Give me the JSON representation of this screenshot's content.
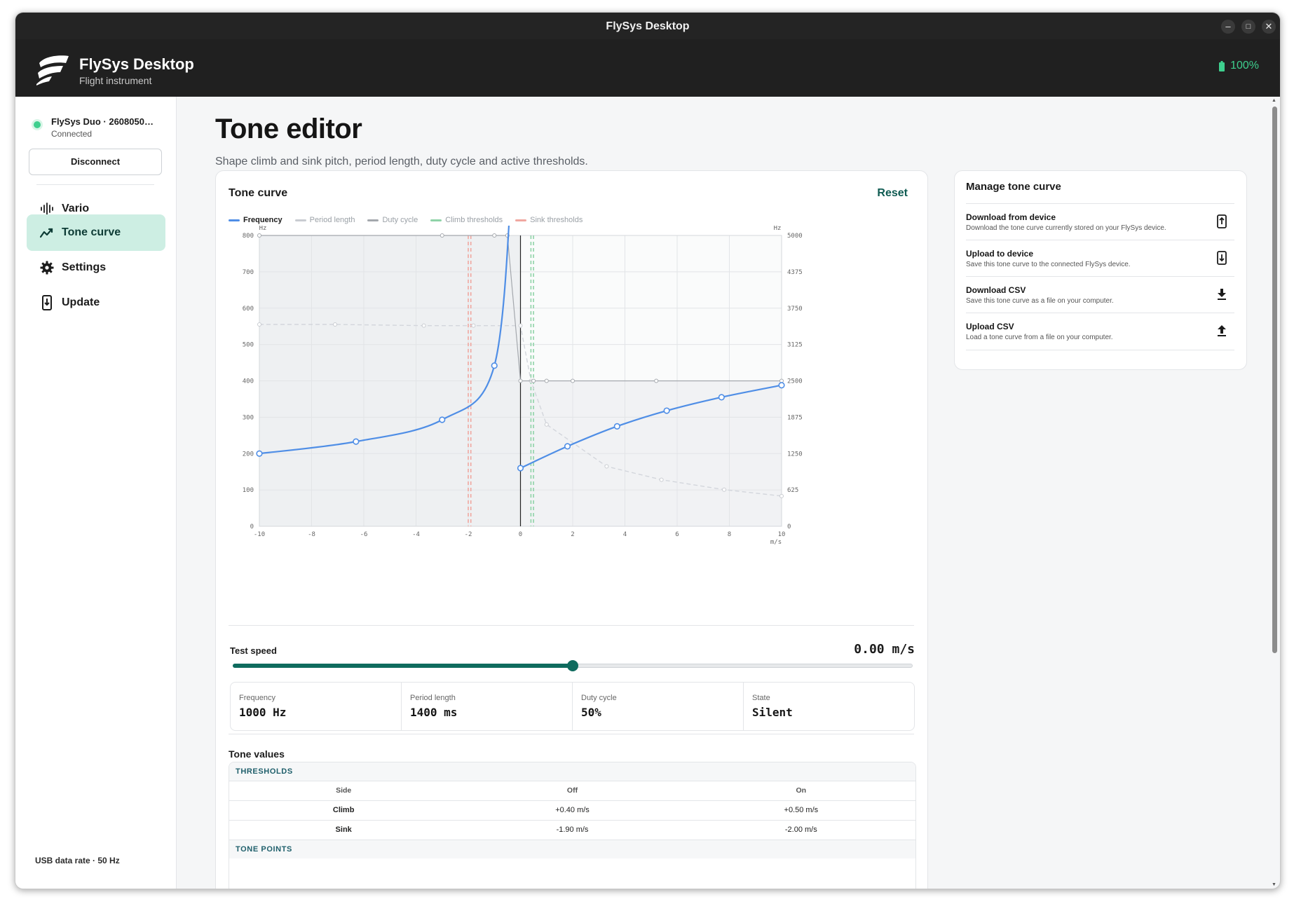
{
  "window": {
    "title": "FlySys Desktop",
    "minimize": "–",
    "maximize": "□",
    "close": "✕"
  },
  "header": {
    "app_name": "FlySys Desktop",
    "subtitle": "Flight instrument",
    "battery": "100%",
    "battery_color": "#3ecf8e"
  },
  "sidebar": {
    "device_name": "FlySys Duo · 2608050…",
    "device_status": "Connected",
    "disconnect_label": "Disconnect",
    "items": [
      {
        "label": "Vario",
        "icon": "waveform-icon"
      },
      {
        "label": "Tone curve",
        "icon": "line-chart-icon",
        "active": true
      },
      {
        "label": "Settings",
        "icon": "gear-icon"
      },
      {
        "label": "Update",
        "icon": "phone-download-icon"
      }
    ],
    "usb_rate": "USB data rate · 50 Hz"
  },
  "page": {
    "title": "Tone editor",
    "subtitle": "Shape climb and sink pitch, period length, duty cycle and active thresholds."
  },
  "tone_card": {
    "title": "Tone curve",
    "reset_label": "Reset",
    "test_speed_label": "Test speed",
    "test_speed_value": "0.00 m/s",
    "slider_fraction": 0.5,
    "stats": [
      {
        "label": "Frequency",
        "value": "1000 Hz"
      },
      {
        "label": "Period length",
        "value": "1400 ms"
      },
      {
        "label": "Duty cycle",
        "value": "50%"
      },
      {
        "label": "State",
        "value": "Silent"
      }
    ],
    "tone_values_title": "Tone values",
    "thresholds_title": "THRESHOLDS",
    "thresholds_head": {
      "side": "Side",
      "off": "Off",
      "on": "On"
    },
    "thresholds": [
      {
        "side": "Climb",
        "off": "+0.40 m/s",
        "on": "+0.50 m/s"
      },
      {
        "side": "Sink",
        "off": "-1.90 m/s",
        "on": "-2.00 m/s"
      }
    ],
    "tone_points_title": "TONE POINTS"
  },
  "chart_data": {
    "type": "line",
    "legend": [
      {
        "name": "Frequency",
        "color": "#4f8ee6"
      },
      {
        "name": "Period length",
        "color": "#c9ccd1"
      },
      {
        "name": "Duty cycle",
        "color": "#a4a8ad"
      },
      {
        "name": "Climb thresholds",
        "color": "#8fd3a8"
      },
      {
        "name": "Sink thresholds",
        "color": "#f0a7a0"
      }
    ],
    "x_unit": "m/s",
    "y_left_unit": "Hz",
    "y_right_unit": "Hz",
    "xlim": [
      -10,
      10
    ],
    "x_ticks": [
      "-10",
      "-8",
      "-6",
      "-4",
      "-2",
      "0",
      "2",
      "4",
      "6",
      "8",
      "10"
    ],
    "y_left_lim": [
      0,
      800
    ],
    "y_left_ticks": [
      "0",
      "100",
      "200",
      "300",
      "400",
      "500",
      "600",
      "700",
      "800"
    ],
    "y_right_lim": [
      0,
      5000
    ],
    "y_right_ticks": [
      "0",
      "625",
      "1250",
      "1875",
      "2500",
      "3125",
      "3750",
      "4375",
      "5000"
    ],
    "grid": true,
    "series": [
      {
        "name": "Frequency",
        "sink_points": [
          [
            -10,
            200
          ],
          [
            -6.3,
            233
          ],
          [
            -3,
            293
          ],
          [
            -1,
            442
          ],
          [
            -0.3,
            1000
          ]
        ],
        "climb_points": [
          [
            0,
            160
          ],
          [
            1.8,
            220
          ],
          [
            3.7,
            275
          ],
          [
            5.6,
            318
          ],
          [
            7.7,
            355
          ],
          [
            10,
            388
          ]
        ]
      },
      {
        "name": "Period length",
        "points": [
          [
            -10,
            3470
          ],
          [
            -7.1,
            3470
          ],
          [
            -3.7,
            3450
          ],
          [
            -1.8,
            3450
          ],
          [
            0,
            3450
          ],
          [
            0.4,
            2500
          ],
          [
            1,
            1750
          ],
          [
            3.3,
            1030
          ],
          [
            5.4,
            800
          ],
          [
            7.8,
            630
          ],
          [
            10,
            520
          ]
        ]
      },
      {
        "name": "Duty cycle",
        "points": [
          [
            -10,
            5000
          ],
          [
            -3,
            5000
          ],
          [
            -1,
            5000
          ],
          [
            -0.5,
            5000
          ],
          [
            0,
            2500
          ],
          [
            0.5,
            2500
          ],
          [
            1,
            2500
          ],
          [
            2,
            2500
          ],
          [
            5.2,
            2500
          ],
          [
            10,
            2500
          ]
        ]
      }
    ],
    "climb_thresholds": [
      0.4,
      0.5
    ],
    "sink_thresholds": [
      -1.9,
      -2.0
    ]
  },
  "manage": {
    "title": "Manage tone curve",
    "items": [
      {
        "title": "Download from device",
        "desc": "Download the tone curve currently stored on your FlySys device.",
        "icon": "device-upload-icon"
      },
      {
        "title": "Upload to device",
        "desc": "Save this tone curve to the connected FlySys device.",
        "icon": "device-download-icon"
      },
      {
        "title": "Download CSV",
        "desc": "Save this tone curve as a file on your computer.",
        "icon": "download-icon"
      },
      {
        "title": "Upload CSV",
        "desc": "Load a tone curve from a file on your computer.",
        "icon": "upload-icon"
      }
    ]
  }
}
